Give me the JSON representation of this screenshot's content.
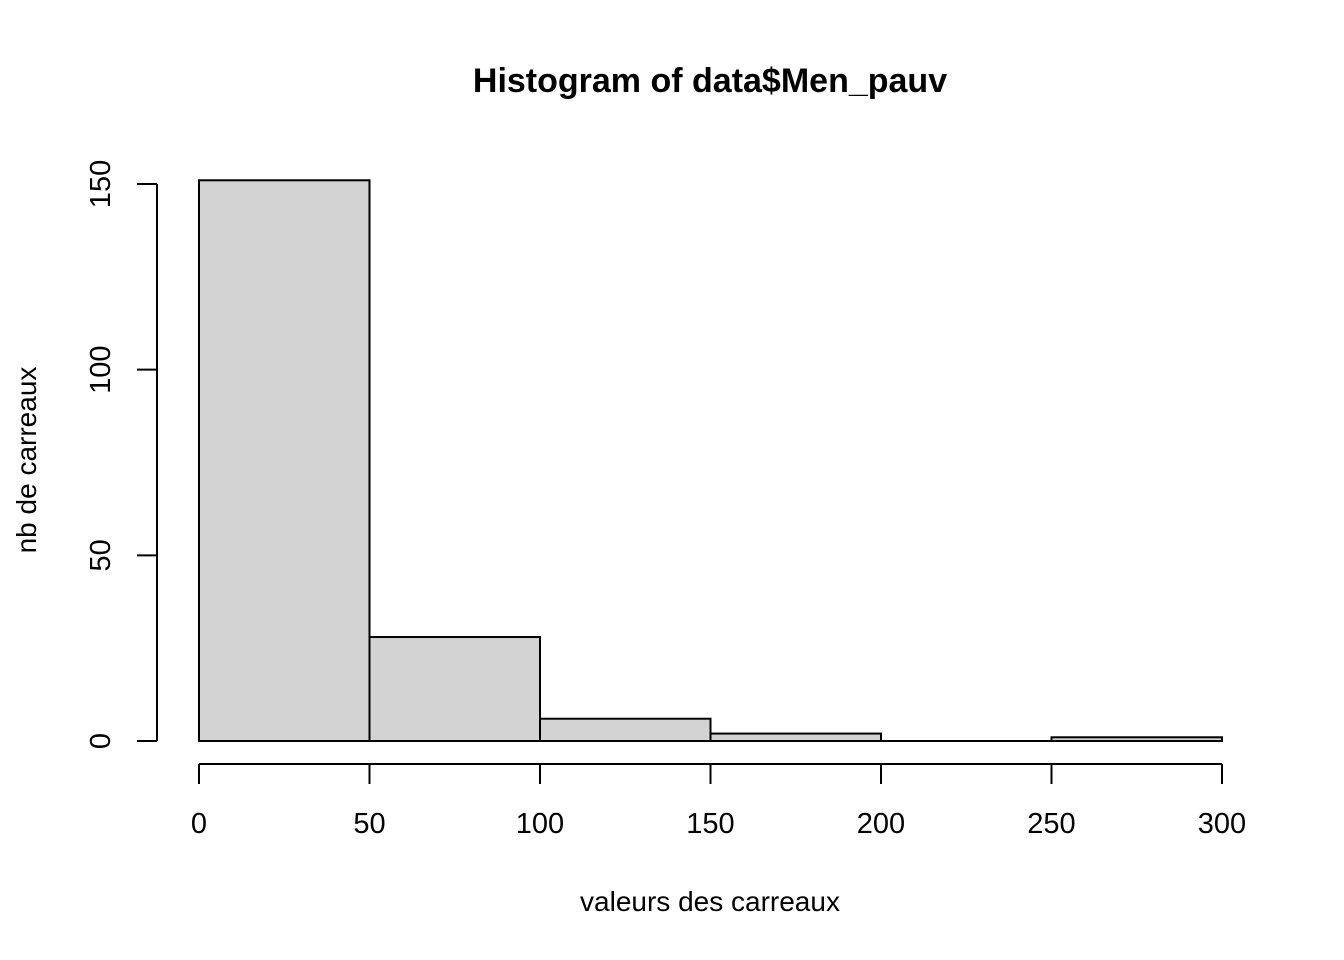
{
  "chart_data": {
    "type": "bar",
    "title": "Histogram of data$Men_pauv",
    "xlabel": "valeurs des carreaux",
    "ylabel": "nb de carreaux",
    "bins": [
      {
        "from": 0,
        "to": 50,
        "count": 151
      },
      {
        "from": 50,
        "to": 100,
        "count": 28
      },
      {
        "from": 100,
        "to": 150,
        "count": 6
      },
      {
        "from": 150,
        "to": 200,
        "count": 2
      },
      {
        "from": 200,
        "to": 250,
        "count": 0
      },
      {
        "from": 250,
        "to": 300,
        "count": 1
      }
    ],
    "xlim": [
      0,
      300
    ],
    "ylim": [
      0,
      150
    ],
    "xticks": [
      0,
      50,
      100,
      150,
      200,
      250,
      300
    ],
    "yticks": [
      0,
      50,
      100,
      150
    ],
    "xtick_labels": [
      "0",
      "50",
      "100",
      "150",
      "200",
      "250",
      "300"
    ],
    "ytick_labels": [
      "0",
      "50",
      "100",
      "150"
    ],
    "bar_fill": "#d3d3d3",
    "bar_stroke": "#000000",
    "grid": false,
    "legend": "none"
  }
}
